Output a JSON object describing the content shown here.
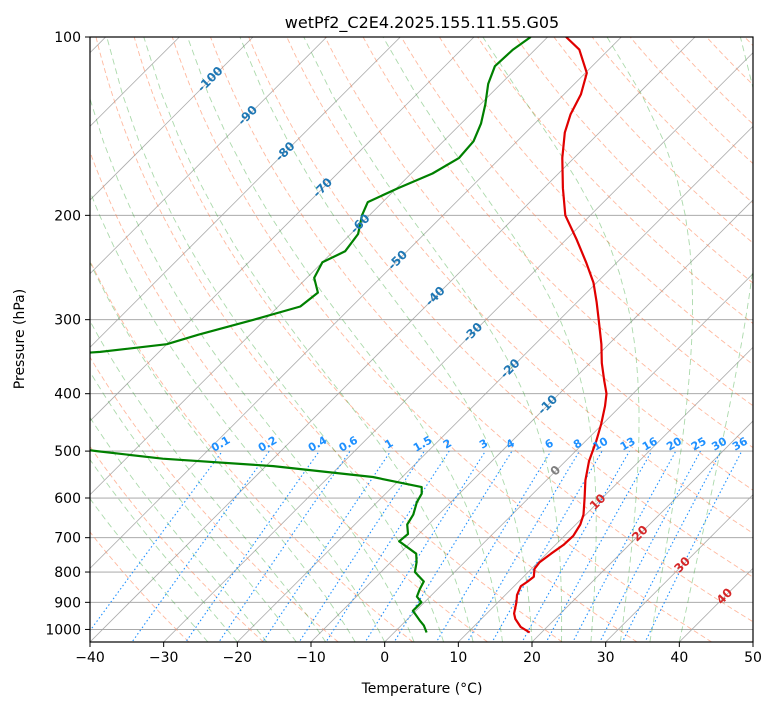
{
  "chart_data": {
    "type": "line",
    "title": "wetPf2_C2E4.2025.155.11.55.G05",
    "xlabel": "Temperature (°C)",
    "ylabel": "Pressure (hPa)",
    "xlim": [
      -40,
      50
    ],
    "ylim": [
      1050,
      100
    ],
    "y_scale": "log",
    "skew_angle_deg": 45,
    "x_ticks": [
      -40,
      -30,
      -20,
      -10,
      0,
      10,
      20,
      30,
      40,
      50
    ],
    "y_ticks": [
      100,
      200,
      300,
      400,
      500,
      600,
      700,
      800,
      900,
      1000
    ],
    "grid": true,
    "series": [
      {
        "role": "temperature",
        "color": "#e00000",
        "points": [
          [
            1012,
            18.4
          ],
          [
            990,
            16.4
          ],
          [
            960,
            14.6
          ],
          [
            940,
            13.7
          ],
          [
            900,
            12.5
          ],
          [
            875,
            11.6
          ],
          [
            845,
            10.9
          ],
          [
            830,
            11.2
          ],
          [
            815,
            11.4
          ],
          [
            790,
            10.4
          ],
          [
            770,
            10.2
          ],
          [
            745,
            10.6
          ],
          [
            720,
            11.1
          ],
          [
            695,
            11.2
          ],
          [
            665,
            10.6
          ],
          [
            640,
            9.7
          ],
          [
            600,
            7.6
          ],
          [
            560,
            5.3
          ],
          [
            520,
            3.2
          ],
          [
            480,
            1.4
          ],
          [
            450,
            -0.2
          ],
          [
            420,
            -2.1
          ],
          [
            400,
            -3.6
          ],
          [
            380,
            -5.7
          ],
          [
            355,
            -8.4
          ],
          [
            330,
            -11.0
          ],
          [
            300,
            -14.7
          ],
          [
            280,
            -17.4
          ],
          [
            260,
            -20.4
          ],
          [
            240,
            -24.2
          ],
          [
            220,
            -28.5
          ],
          [
            200,
            -33.4
          ],
          [
            180,
            -37.4
          ],
          [
            160,
            -41.6
          ],
          [
            145,
            -44.7
          ],
          [
            135,
            -46.4
          ],
          [
            125,
            -47.7
          ],
          [
            115,
            -49.8
          ],
          [
            105,
            -54.0
          ],
          [
            100,
            -57.5
          ]
        ]
      },
      {
        "role": "dewpoint",
        "color": "#008000",
        "points": [
          [
            1012,
            4.4
          ],
          [
            985,
            3.1
          ],
          [
            965,
            1.8
          ],
          [
            930,
            -0.4
          ],
          [
            900,
            -0.4
          ],
          [
            880,
            -1.8
          ],
          [
            855,
            -2.4
          ],
          [
            830,
            -2.9
          ],
          [
            800,
            -5.4
          ],
          [
            770,
            -6.5
          ],
          [
            745,
            -7.7
          ],
          [
            710,
            -11.7
          ],
          [
            690,
            -11.5
          ],
          [
            665,
            -12.9
          ],
          [
            640,
            -13.4
          ],
          [
            610,
            -14.6
          ],
          [
            590,
            -15.1
          ],
          [
            575,
            -16.0
          ],
          [
            553,
            -24.0
          ],
          [
            530,
            -39.0
          ],
          [
            515,
            -55.0
          ],
          [
            500,
            -65.0
          ],
          [
            480,
            -78.0
          ],
          [
            470,
            -90.0
          ],
          [
            460,
            -100.0
          ],
          [
            450,
            -120.0
          ],
          [
            435,
            -150.0
          ],
          [
            420,
            -160.0
          ],
          [
            410,
            -130.0
          ],
          [
            405,
            -100.0
          ],
          [
            395,
            -85.0
          ],
          [
            387,
            -78.0
          ],
          [
            378,
            -80.0
          ],
          [
            370,
            -88.0
          ],
          [
            364,
            -100.0
          ],
          [
            358,
            -104.0
          ],
          [
            350,
            -92.0
          ],
          [
            340,
            -78.0
          ],
          [
            330,
            -70.0
          ],
          [
            318,
            -67.0
          ],
          [
            300,
            -61.5
          ],
          [
            285,
            -57.0
          ],
          [
            270,
            -56.5
          ],
          [
            255,
            -59.0
          ],
          [
            240,
            -60.0
          ],
          [
            230,
            -58.4
          ],
          [
            215,
            -59.0
          ],
          [
            200,
            -61.0
          ],
          [
            190,
            -62.0
          ],
          [
            180,
            -59.8
          ],
          [
            170,
            -57.1
          ],
          [
            160,
            -55.6
          ],
          [
            150,
            -55.9
          ],
          [
            140,
            -57.3
          ],
          [
            130,
            -59.3
          ],
          [
            120,
            -61.7
          ],
          [
            112,
            -63.2
          ],
          [
            105,
            -63.0
          ],
          [
            100,
            -62.3
          ]
        ]
      }
    ],
    "dry_adiabat_color": "#ff7f50",
    "moist_adiabat_color": "#2ca02c",
    "isotherm_color": "#808080",
    "isobar_color": "#9e9e9e",
    "mixing_ratio_color": "#1e90ff",
    "mixing_ratio_labels": [
      "0.1",
      "0.2",
      "0.4",
      "0.6",
      "1",
      "1.5",
      "2",
      "3",
      "4",
      "6",
      "8",
      "10",
      "13",
      "16",
      "20",
      "25",
      "30",
      "36"
    ],
    "isotherm_labels_blue": [
      "-100",
      "-90",
      "-80",
      "-70",
      "-60",
      "-50",
      "-40",
      "-30",
      "-20",
      "-10"
    ],
    "isotherm_labels_red": [
      "0",
      "10",
      "20",
      "30",
      "40"
    ]
  }
}
